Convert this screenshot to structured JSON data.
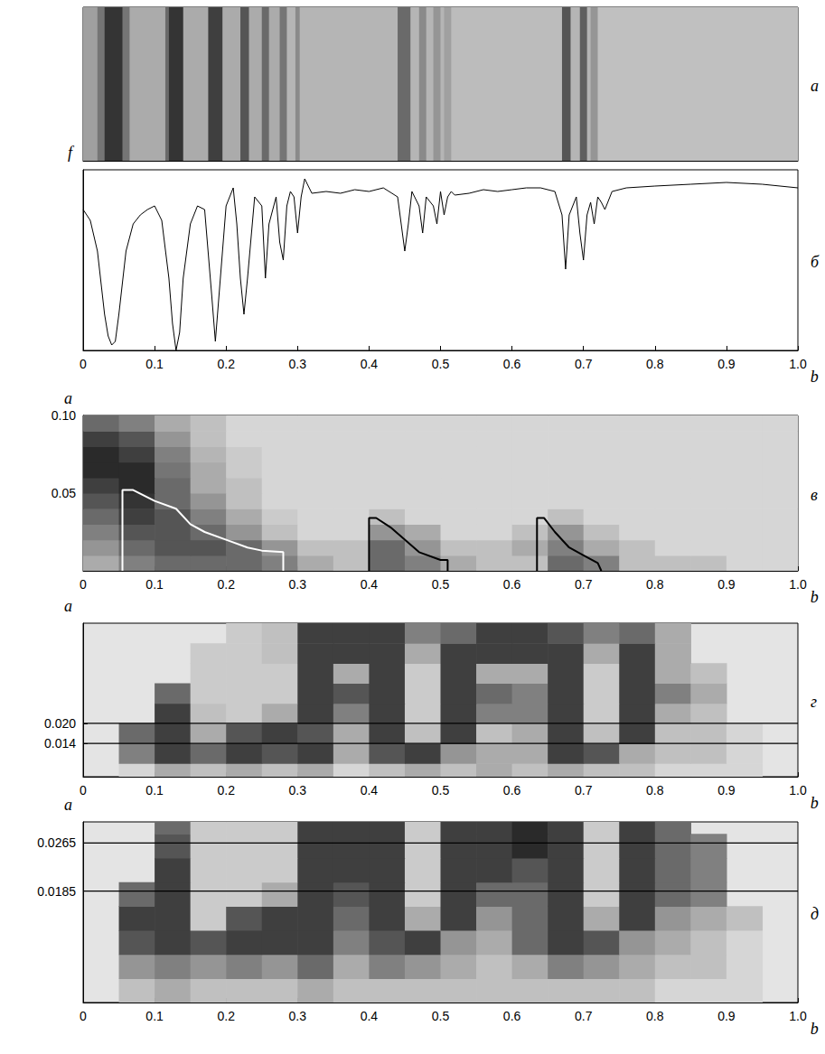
{
  "chart_data": [
    {
      "type": "heatmap",
      "title": "а",
      "xlim": [
        0,
        1
      ],
      "tick_labels": false,
      "cell_range": [
        0,
        1
      ],
      "cell_b": [
        0,
        0.02,
        0.03,
        0.055,
        0.065,
        0.115,
        0.12,
        0.14,
        0.175,
        0.195,
        0.22,
        0.232,
        0.25,
        0.26,
        0.275,
        0.285,
        0.297,
        0.303,
        0.44,
        0.458,
        0.47,
        0.48,
        0.49,
        0.5,
        0.505,
        0.515,
        0.67,
        0.682,
        0.695,
        0.705,
        0.71,
        0.72,
        1
      ],
      "cells": [
        [
          0.35,
          0.55,
          0.85,
          0.55,
          0.3,
          0.6,
          0.85,
          0.3,
          0.8,
          0.3,
          0.7,
          0.3,
          0.6,
          0.3,
          0.55,
          0.25,
          0.45,
          0.25,
          0.6,
          0.25,
          0.45,
          0.25,
          0.4,
          0.25,
          0.35,
          0.22,
          0.7,
          0.25,
          0.65,
          0.25,
          0.4,
          0.2
        ]
      ]
    },
    {
      "type": "line",
      "title": "б",
      "x_label": "b",
      "y_label": "f",
      "color": "#000000",
      "xlim": [
        0,
        1
      ],
      "ylim": [
        0,
        1
      ],
      "tick_labels": "x",
      "xticks": [
        0,
        0.1,
        0.2,
        0.3,
        0.4,
        0.5,
        0.6,
        0.7,
        0.8,
        0.9,
        {
          "value": 1,
          "label": "1.0"
        }
      ],
      "x": [
        0,
        0.01,
        0.02,
        0.03,
        0.035,
        0.04,
        0.045,
        0.05,
        0.06,
        0.07,
        0.08,
        0.09,
        0.1,
        0.11,
        0.12,
        0.125,
        0.13,
        0.135,
        0.14,
        0.15,
        0.16,
        0.17,
        0.18,
        0.185,
        0.19,
        0.2,
        0.21,
        0.215,
        0.22,
        0.225,
        0.23,
        0.24,
        0.25,
        0.255,
        0.26,
        0.27,
        0.275,
        0.28,
        0.285,
        0.29,
        0.295,
        0.3,
        0.305,
        0.31,
        0.32,
        0.34,
        0.36,
        0.38,
        0.4,
        0.42,
        0.44,
        0.445,
        0.45,
        0.455,
        0.46,
        0.47,
        0.475,
        0.48,
        0.49,
        0.495,
        0.5,
        0.505,
        0.51,
        0.515,
        0.52,
        0.54,
        0.56,
        0.58,
        0.6,
        0.62,
        0.64,
        0.66,
        0.67,
        0.675,
        0.68,
        0.69,
        0.695,
        0.7,
        0.705,
        0.71,
        0.715,
        0.72,
        0.725,
        0.73,
        0.74,
        0.76,
        0.8,
        0.85,
        0.9,
        0.95,
        1
      ],
      "values": [
        0.78,
        0.72,
        0.55,
        0.2,
        0.08,
        0.03,
        0.05,
        0.2,
        0.55,
        0.7,
        0.75,
        0.78,
        0.8,
        0.72,
        0.4,
        0.15,
        0,
        0.1,
        0.4,
        0.7,
        0.8,
        0.78,
        0.3,
        0.05,
        0.3,
        0.8,
        0.9,
        0.7,
        0.4,
        0.2,
        0.4,
        0.85,
        0.8,
        0.4,
        0.7,
        0.85,
        0.6,
        0.5,
        0.8,
        0.88,
        0.85,
        0.65,
        0.85,
        0.95,
        0.87,
        0.88,
        0.87,
        0.89,
        0.88,
        0.9,
        0.85,
        0.7,
        0.55,
        0.7,
        0.88,
        0.8,
        0.65,
        0.85,
        0.8,
        0.7,
        0.88,
        0.75,
        0.85,
        0.88,
        0.86,
        0.87,
        0.89,
        0.88,
        0.89,
        0.9,
        0.9,
        0.88,
        0.75,
        0.45,
        0.75,
        0.85,
        0.65,
        0.5,
        0.75,
        0.82,
        0.7,
        0.85,
        0.82,
        0.78,
        0.88,
        0.9,
        0.91,
        0.92,
        0.93,
        0.92,
        0.9
      ]
    },
    {
      "type": "heatmap",
      "title": "в",
      "x_label": "b",
      "y_label": "a",
      "xlim": [
        0,
        1
      ],
      "ylim": [
        0,
        0.1
      ],
      "cell_range": [
        0,
        1
      ],
      "xticks": [
        0,
        0.1,
        0.2,
        0.3,
        0.4,
        0.5,
        0.6,
        0.7,
        0.8,
        0.9,
        {
          "value": 1,
          "label": "1.0"
        }
      ],
      "yticks": [
        0.05,
        {
          "value": 0.1,
          "label": "0.10"
        }
      ],
      "cell_b": [
        0,
        0.05,
        0.1,
        0.15,
        0.2,
        0.25,
        0.3,
        0.35,
        0.4,
        0.45,
        0.5,
        0.55,
        0.6,
        0.65,
        0.7,
        0.75,
        0.8,
        0.85,
        0.9,
        0.95,
        1
      ],
      "cell_a": [
        0,
        0.01,
        0.02,
        0.03,
        0.04,
        0.05,
        0.06,
        0.07,
        0.08,
        0.09,
        0.1
      ],
      "cells": [
        [
          0.3,
          0.5,
          0.6,
          0.6,
          0.6,
          0.5,
          0.3,
          0.2,
          0.6,
          0.5,
          0.3,
          0.2,
          0.2,
          0.6,
          0.5,
          0.2,
          0.2,
          0.2,
          0.1,
          0.1
        ],
        [
          0.4,
          0.6,
          0.7,
          0.7,
          0.6,
          0.4,
          0.2,
          0.2,
          0.6,
          0.4,
          0.2,
          0.2,
          0.3,
          0.5,
          0.3,
          0.2,
          0.1,
          0.1,
          0.1,
          0.1
        ],
        [
          0.5,
          0.7,
          0.7,
          0.6,
          0.4,
          0.2,
          0.1,
          0.1,
          0.4,
          0.3,
          0.1,
          0.1,
          0.2,
          0.4,
          0.2,
          0.1,
          0.1,
          0.1,
          0.1,
          0.1
        ],
        [
          0.6,
          0.8,
          0.7,
          0.5,
          0.3,
          0.15,
          0.1,
          0.1,
          0.2,
          0.1,
          0.1,
          0.1,
          0.1,
          0.2,
          0.1,
          0.1,
          0.1,
          0.1,
          0.1,
          0.1
        ],
        [
          0.7,
          0.85,
          0.6,
          0.4,
          0.2,
          0.1,
          0.1,
          0.1,
          0.1,
          0.1,
          0.1,
          0.1,
          0.1,
          0.1,
          0.1,
          0.1,
          0.1,
          0.1,
          0.1,
          0.1
        ],
        [
          0.8,
          0.9,
          0.6,
          0.3,
          0.2,
          0.1,
          0.1,
          0.1,
          0.1,
          0.1,
          0.1,
          0.1,
          0.1,
          0.1,
          0.1,
          0.1,
          0.1,
          0.1,
          0.1,
          0.1
        ],
        [
          0.9,
          0.9,
          0.55,
          0.3,
          0.15,
          0.1,
          0.1,
          0.1,
          0.1,
          0.1,
          0.1,
          0.1,
          0.1,
          0.1,
          0.1,
          0.1,
          0.1,
          0.1,
          0.1,
          0.1
        ],
        [
          0.9,
          0.8,
          0.5,
          0.25,
          0.15,
          0.1,
          0.1,
          0.1,
          0.1,
          0.1,
          0.1,
          0.1,
          0.1,
          0.1,
          0.1,
          0.1,
          0.1,
          0.1,
          0.1,
          0.1
        ],
        [
          0.8,
          0.7,
          0.4,
          0.2,
          0.1,
          0.1,
          0.1,
          0.1,
          0.1,
          0.1,
          0.1,
          0.1,
          0.1,
          0.1,
          0.1,
          0.1,
          0.1,
          0.1,
          0.1,
          0.1
        ],
        [
          0.6,
          0.5,
          0.3,
          0.2,
          0.1,
          0.1,
          0.1,
          0.1,
          0.1,
          0.1,
          0.1,
          0.1,
          0.1,
          0.1,
          0.1,
          0.1,
          0.1,
          0.1,
          0.1,
          0.1
        ]
      ],
      "contours": [
        {
          "color": "#ffffff",
          "points": [
            [
              0.055,
              0
            ],
            [
              0.055,
              0.052
            ],
            [
              0.07,
              0.052
            ],
            [
              0.1,
              0.045
            ],
            [
              0.13,
              0.04
            ],
            [
              0.15,
              0.03
            ],
            [
              0.17,
              0.025
            ],
            [
              0.2,
              0.02
            ],
            [
              0.23,
              0.015
            ],
            [
              0.25,
              0.013
            ],
            [
              0.28,
              0.012
            ],
            [
              0.28,
              0
            ]
          ]
        },
        {
          "color": "#000000",
          "points": [
            [
              0.4,
              0
            ],
            [
              0.4,
              0.034
            ],
            [
              0.41,
              0.034
            ],
            [
              0.43,
              0.028
            ],
            [
              0.45,
              0.02
            ],
            [
              0.47,
              0.012
            ],
            [
              0.5,
              0.007
            ],
            [
              0.51,
              0.007
            ],
            [
              0.51,
              0
            ]
          ]
        },
        {
          "color": "#000000",
          "points": [
            [
              0.635,
              0
            ],
            [
              0.635,
              0.034
            ],
            [
              0.645,
              0.034
            ],
            [
              0.66,
              0.025
            ],
            [
              0.68,
              0.015
            ],
            [
              0.7,
              0.01
            ],
            [
              0.72,
              0.005
            ],
            [
              0.725,
              0
            ]
          ]
        }
      ]
    },
    {
      "type": "heatmap",
      "title": "г",
      "x_label": "b",
      "y_label": "a",
      "grid": true,
      "xlim": [
        0,
        1
      ],
      "ylim": [
        0.004,
        0.05
      ],
      "cell_range": [
        0,
        1
      ],
      "xticks": [
        0,
        0.1,
        0.2,
        0.3,
        0.4,
        0.5,
        0.6,
        0.7,
        0.8,
        0.9,
        {
          "value": 1,
          "label": "1.0"
        }
      ],
      "yticks": [
        0.014,
        {
          "value": 0.02,
          "label": "0.020"
        }
      ],
      "cell_b": [
        0,
        0.05,
        0.1,
        0.15,
        0.2,
        0.25,
        0.3,
        0.35,
        0.4,
        0.45,
        0.5,
        0.55,
        0.6,
        0.65,
        0.7,
        0.75,
        0.8,
        0.85,
        0.9,
        0.95,
        1
      ],
      "cell_a": [
        0.004,
        0.008,
        0.014,
        0.02,
        0.026,
        0.032,
        0.038,
        0.044,
        0.05
      ],
      "cells": [
        [
          null,
          0.1,
          0.3,
          0.2,
          0.3,
          0.2,
          0.3,
          0.1,
          0.2,
          0.3,
          0.2,
          0.3,
          0.2,
          0.3,
          0.2,
          0.2,
          0.1,
          0.1,
          0.1,
          null
        ],
        [
          null,
          0.5,
          0.8,
          0.6,
          0.8,
          0.7,
          0.8,
          0.3,
          0.7,
          0.8,
          0.4,
          0.3,
          0.3,
          0.8,
          0.7,
          0.3,
          0.2,
          0.2,
          0.1,
          null
        ],
        [
          null,
          0.6,
          0.8,
          0.3,
          0.7,
          0.8,
          0.7,
          0.3,
          0.8,
          0.2,
          0.8,
          0.2,
          0.3,
          0.8,
          0.2,
          0.8,
          0.2,
          0.2,
          0.1,
          null
        ],
        [
          null,
          null,
          0.8,
          0.2,
          0.15,
          0.3,
          0.8,
          0.5,
          0.8,
          0.15,
          0.8,
          0.5,
          0.5,
          0.8,
          0.15,
          0.8,
          0.3,
          0.2,
          null,
          null
        ],
        [
          null,
          null,
          0.6,
          0.15,
          0.15,
          0.15,
          0.8,
          0.7,
          0.8,
          0.15,
          0.8,
          0.6,
          0.5,
          0.8,
          0.15,
          0.8,
          0.5,
          0.3,
          null,
          null
        ],
        [
          null,
          null,
          null,
          0.15,
          0.15,
          0.15,
          0.8,
          0.3,
          0.8,
          0.15,
          0.8,
          0.3,
          0.3,
          0.8,
          0.15,
          0.8,
          0.3,
          0.2,
          null,
          null
        ],
        [
          null,
          null,
          null,
          0.15,
          0.15,
          0.2,
          0.8,
          0.8,
          0.8,
          0.3,
          0.8,
          0.8,
          0.8,
          0.8,
          0.3,
          0.8,
          0.3,
          null,
          null,
          null
        ],
        [
          null,
          null,
          null,
          null,
          0.15,
          0.2,
          0.8,
          0.8,
          0.8,
          0.5,
          0.6,
          0.8,
          0.8,
          0.7,
          0.5,
          0.6,
          0.3,
          null,
          null,
          null
        ]
      ]
    },
    {
      "type": "heatmap",
      "title": "д",
      "x_label": "b",
      "y_label": "a",
      "grid": true,
      "xlim": [
        0,
        1
      ],
      "ylim": [
        0,
        0.03
      ],
      "cell_range": [
        0,
        1
      ],
      "xticks": [
        0,
        0.1,
        0.2,
        0.3,
        0.4,
        0.5,
        0.6,
        0.7,
        0.8,
        0.9,
        {
          "value": 1,
          "label": "1.0"
        }
      ],
      "yticks": [
        0.0185,
        0.0265
      ],
      "cell_b": [
        0,
        0.05,
        0.1,
        0.15,
        0.2,
        0.25,
        0.3,
        0.35,
        0.4,
        0.45,
        0.5,
        0.55,
        0.6,
        0.65,
        0.7,
        0.75,
        0.8,
        0.85,
        0.9,
        0.95,
        1
      ],
      "cell_a": [
        0,
        0.004,
        0.008,
        0.012,
        0.016,
        0.02,
        0.024,
        0.028,
        0.03
      ],
      "cells": [
        [
          null,
          0.2,
          0.3,
          0.2,
          0.2,
          0.2,
          0.3,
          0.2,
          0.2,
          0.2,
          0.2,
          0.2,
          0.2,
          0.2,
          0.2,
          0.2,
          0.1,
          0.1,
          0.1,
          null
        ],
        [
          null,
          0.4,
          0.5,
          0.4,
          0.5,
          0.4,
          0.6,
          0.3,
          0.5,
          0.4,
          0.3,
          0.2,
          0.3,
          0.5,
          0.4,
          0.3,
          0.2,
          0.2,
          0.1,
          null
        ],
        [
          null,
          0.7,
          0.8,
          0.7,
          0.8,
          0.8,
          0.8,
          0.5,
          0.7,
          0.8,
          0.4,
          0.3,
          0.6,
          0.8,
          0.7,
          0.4,
          0.3,
          0.2,
          0.1,
          null
        ],
        [
          null,
          0.8,
          0.8,
          0.15,
          0.7,
          0.8,
          0.8,
          0.6,
          0.8,
          0.3,
          0.8,
          0.4,
          0.6,
          0.8,
          0.3,
          0.8,
          0.4,
          0.3,
          0.2,
          null
        ],
        [
          null,
          0.6,
          0.8,
          0.15,
          0.15,
          0.3,
          0.8,
          0.7,
          0.8,
          0.15,
          0.8,
          0.6,
          0.6,
          0.8,
          0.15,
          0.8,
          0.6,
          0.5,
          null,
          null
        ],
        [
          null,
          null,
          0.8,
          0.15,
          0.15,
          0.15,
          0.8,
          0.8,
          0.8,
          0.15,
          0.8,
          0.8,
          0.7,
          0.8,
          0.15,
          0.8,
          0.6,
          0.5,
          null,
          null
        ],
        [
          null,
          null,
          0.7,
          0.15,
          0.15,
          0.15,
          0.8,
          0.8,
          0.8,
          0.15,
          0.8,
          0.8,
          0.9,
          0.8,
          0.15,
          0.8,
          0.6,
          0.5,
          null,
          null
        ],
        [
          null,
          null,
          0.6,
          0.15,
          0.15,
          0.15,
          0.8,
          0.8,
          0.8,
          0.15,
          0.8,
          0.8,
          0.9,
          0.8,
          0.15,
          0.8,
          0.6,
          null,
          null,
          null
        ]
      ]
    }
  ]
}
